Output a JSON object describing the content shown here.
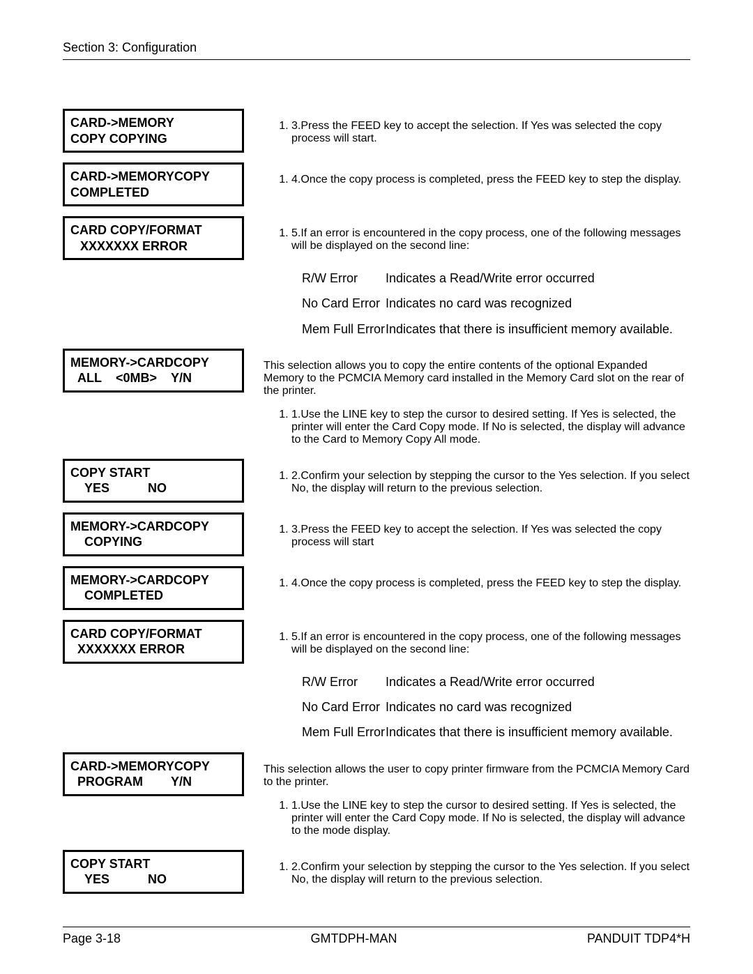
{
  "header": {
    "section": "Section 3: Configuration"
  },
  "boxes": {
    "b1_l1": "CARD->MEMORY",
    "b1_l2": "COPY COPYING",
    "b2_l1": "CARD->MEMORYCOPY",
    "b2_l2": "COMPLETED",
    "b3_l1": "CARD COPY/FORMAT",
    "b3_l2": "XXXXXXX ERROR",
    "b4_l1": "MEMORY->CARDCOPY",
    "b4_l2": "ALL    <0MB>    Y/N",
    "b5_l1": "COPY START",
    "b5_l2": "    YES           NO",
    "b6_l1": "MEMORY->CARDCOPY",
    "b6_l2": "    COPYING",
    "b7_l1": "MEMORY->CARDCOPY",
    "b7_l2": "    COMPLETED",
    "b8_l1": "CARD COPY/FORMAT",
    "b8_l2": "  XXXXXXX ERROR",
    "b9_l1": "CARD->MEMORYCOPY",
    "b9_l2": "  PROGRAM        Y/N",
    "b10_l1": "COPY START",
    "b10_l2": "    YES           NO"
  },
  "steps": {
    "s3_num": "3.",
    "s3_txt": "Press the FEED key to accept the selection. If Yes was selected the copy process will start.",
    "s4_num": "4.",
    "s4_txt": "Once the copy process is completed, press the FEED key to step the display.",
    "s5_num": "5.",
    "s5_txt": "If an error is encountered in the copy process, one of the following messages will be displayed on the second line:",
    "intro2": "This selection allows you to copy the entire contents of the optional Expanded Memory to the PCMCIA Memory card installed in the Memory Card slot on the rear of the printer.",
    "s1b_num": "1.",
    "s1b_txt": "Use the LINE key to step the cursor to desired setting. If Yes is selected, the printer will enter the Card Copy mode. If No is selected, the display will advance to the Card to Memory Copy All mode.",
    "s2b_num": "2.",
    "s2b_txt": "Confirm your selection by stepping the cursor to the Yes selection. If you select No, the display will return to the previous selection.",
    "s3b_num": "3.",
    "s3b_txt": "Press the FEED key to accept the selection. If Yes was selected the copy process will start",
    "s4b_num": "4.",
    "s4b_txt": "Once the copy process is completed, press the FEED key to step the display.",
    "s5b_num": "5.",
    "s5b_txt": "If an error is encountered in the copy process, one of the following messages will be displayed on the second line:",
    "intro3": "This selection allows the user to copy printer firmware from the PCMCIA Memory Card to the printer.",
    "s1c_num": "1.",
    "s1c_txt": "Use the LINE key to step the cursor to desired setting. If Yes is selected, the printer will enter the Card Copy mode. If No is selected, the display will advance to the mode display.",
    "s2c_num": "2.",
    "s2c_txt": "Confirm your selection by stepping the cursor to the Yes selection. If you select No, the display will return to the previous selection."
  },
  "errors": {
    "e1_lbl": "R/W Error",
    "e1_desc": "Indicates a Read/Write error occurred",
    "e2_lbl": "No Card Error",
    "e2_desc": "Indicates no card was recognized",
    "e3_lbl": "Mem Full Error",
    "e3_desc": "Indicates that there is insufficient memory available."
  },
  "footer": {
    "left": "Page 3-18",
    "center": "GMTDPH-MAN",
    "right": "PANDUIT TDP4*H"
  }
}
